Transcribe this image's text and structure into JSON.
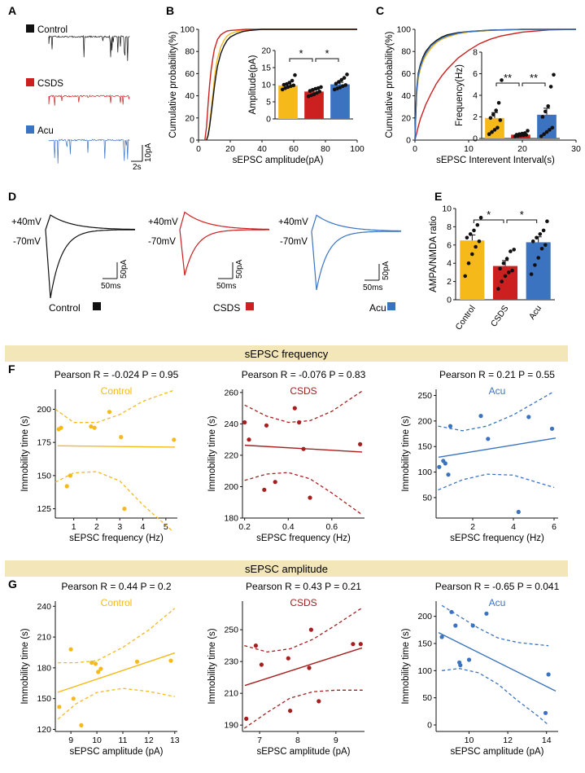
{
  "colors": {
    "control": "#f5b91a",
    "csds": "#cc1f1f",
    "acu": "#3b73c0",
    "band": "#f3e6b8",
    "dark": "#a51f1f",
    "black": "#111111"
  },
  "panels": {
    "A": "A",
    "B": "B",
    "C": "C",
    "D": "D",
    "E": "E",
    "F": "F",
    "G": "G"
  },
  "panel_a": {
    "labels": [
      "Control",
      "CSDS",
      "Acu"
    ],
    "scale_x": "2s",
    "scale_y": "10pA"
  },
  "panel_d": {
    "plus": "+40mV",
    "minus": "-70mV",
    "scale_x": "50ms",
    "scale_y": "50pA",
    "legend": [
      "Control",
      "CSDS",
      "Acu"
    ]
  },
  "band_frequency": "sEPSC frequency",
  "band_amplitude": "sEPSC amplitude",
  "chart_data": [
    {
      "id": "B",
      "type": "line",
      "xlabel": "sEPSC amplitude(pA)",
      "ylabel": "Cumulative probability(%)",
      "xlim": [
        0,
        100
      ],
      "ylim": [
        0,
        100
      ],
      "xticks": [
        "0",
        "20",
        "40",
        "60",
        "80",
        "100"
      ],
      "yticks": [
        "0",
        "20",
        "40",
        "60",
        "80",
        "100"
      ],
      "series": [
        {
          "name": "Control",
          "color": "control",
          "x": [
            5,
            6,
            7,
            8,
            9,
            10,
            11,
            12,
            14,
            16,
            18,
            20,
            24,
            28,
            32,
            40,
            50,
            100
          ],
          "y": [
            0,
            5,
            15,
            28,
            42,
            55,
            66,
            74,
            84,
            90,
            94,
            96,
            98,
            99,
            99.5,
            100,
            100,
            100
          ]
        },
        {
          "name": "CSDS",
          "color": "csds",
          "x": [
            4,
            5,
            6,
            7,
            8,
            9,
            10,
            12,
            14,
            16,
            18,
            20,
            25,
            30,
            40,
            100
          ],
          "y": [
            0,
            12,
            32,
            50,
            64,
            74,
            82,
            91,
            95,
            97,
            98.5,
            99,
            99.5,
            100,
            100,
            100
          ]
        },
        {
          "name": "Acu",
          "color": "black",
          "x": [
            5,
            6,
            7,
            8,
            9,
            10,
            11,
            12,
            14,
            16,
            18,
            20,
            24,
            28,
            32,
            40,
            50,
            100
          ],
          "y": [
            0,
            4,
            12,
            24,
            36,
            48,
            58,
            67,
            78,
            85,
            90,
            93,
            96,
            98,
            99,
            100,
            100,
            100
          ]
        }
      ],
      "inset": {
        "type": "bar",
        "ylabel": "Amplitude(pA)",
        "ylim": [
          0,
          20
        ],
        "yticks": [
          "0",
          "5",
          "10",
          "15",
          "20"
        ],
        "categories": [
          "Control",
          "CSDS",
          "Acu"
        ],
        "values": [
          9.8,
          8.0,
          10.1
        ],
        "errors": [
          0.5,
          0.4,
          0.6
        ],
        "points": [
          [
            8.6,
            9.0,
            9.3,
            9.6,
            9.8,
            10.0,
            10.2,
            10.6,
            11.2,
            12.8
          ],
          [
            6.6,
            6.9,
            7.2,
            7.6,
            8.0,
            8.2,
            8.5,
            8.8,
            9.0,
            9.3
          ],
          [
            8.6,
            8.9,
            9.2,
            9.6,
            9.9,
            10.3,
            10.8,
            11.4,
            12.0,
            13.0
          ]
        ],
        "significance": [
          "*",
          "*"
        ]
      }
    },
    {
      "id": "C",
      "type": "line",
      "xlabel": "sEPSC Interevent Interval(s)",
      "ylabel": "Cumulative probability(%)",
      "xlim": [
        0,
        30
      ],
      "ylim": [
        0,
        100
      ],
      "xticks": [
        "0",
        "10",
        "20",
        "30"
      ],
      "yticks": [
        "0",
        "20",
        "40",
        "60",
        "80",
        "100"
      ],
      "series": [
        {
          "name": "Control",
          "color": "control",
          "x": [
            0,
            0.3,
            0.6,
            1,
            1.5,
            2,
            3,
            4,
            5,
            6,
            8,
            10,
            14,
            20,
            30
          ],
          "y": [
            0,
            40,
            55,
            64,
            71,
            76,
            83,
            88,
            91,
            93,
            96,
            97.5,
            99,
            99.8,
            100
          ]
        },
        {
          "name": "CSDS",
          "color": "csds",
          "x": [
            0,
            0.5,
            1,
            2,
            3,
            4,
            5,
            6,
            8,
            10,
            12,
            14,
            16,
            20,
            25,
            30
          ],
          "y": [
            0,
            10,
            19,
            32,
            42,
            51,
            58,
            64,
            74,
            81,
            87,
            91,
            94,
            97.5,
            99.5,
            100
          ]
        },
        {
          "name": "Acu",
          "color": "black",
          "x": [
            0,
            0.3,
            0.6,
            1,
            1.5,
            2,
            3,
            4,
            5,
            6,
            8,
            10,
            14,
            20,
            30
          ],
          "y": [
            0,
            45,
            60,
            68,
            75,
            80,
            86,
            90,
            93,
            95,
            97,
            98,
            99.3,
            100,
            100
          ]
        },
        {
          "name": "Acu-blue",
          "color": "acu",
          "x": [
            0,
            0.3,
            0.6,
            1,
            1.5,
            2,
            3,
            4,
            5,
            6,
            8,
            10,
            14,
            20,
            30
          ],
          "y": [
            0,
            43,
            58,
            66,
            73,
            78,
            85,
            89,
            92,
            94,
            96.5,
            98,
            99.2,
            100,
            100
          ]
        }
      ],
      "inset": {
        "type": "bar",
        "ylabel": "Frequency(Hz)",
        "ylim": [
          0,
          8
        ],
        "yticks": [
          "0",
          "2",
          "4",
          "6",
          "8"
        ],
        "categories": [
          "Control",
          "CSDS",
          "Acu"
        ],
        "values": [
          1.9,
          0.35,
          2.2
        ],
        "errors": [
          0.5,
          0.06,
          0.6
        ],
        "points": [
          [
            0.4,
            0.6,
            0.8,
            1.0,
            1.7,
            1.9,
            2.2,
            2.6,
            3.3,
            5.4
          ],
          [
            0.2,
            0.25,
            0.28,
            0.3,
            0.33,
            0.35,
            0.4,
            0.45,
            0.5,
            0.72
          ],
          [
            0.2,
            0.4,
            0.6,
            0.8,
            1.0,
            2.0,
            2.5,
            3.0,
            4.8,
            5.9
          ]
        ],
        "significance": [
          "**",
          "**"
        ]
      }
    },
    {
      "id": "E",
      "type": "bar",
      "ylabel": "AMPA/NMDA ratio",
      "ylim": [
        0,
        10
      ],
      "yticks": [
        "0",
        "2",
        "4",
        "6",
        "8",
        "10"
      ],
      "categories": [
        "Control",
        "CSDS",
        "Acu"
      ],
      "values": [
        6.5,
        3.7,
        6.3
      ],
      "errors": [
        0.6,
        0.6,
        0.6
      ],
      "points": [
        [
          2.6,
          4.0,
          5.0,
          5.8,
          6.4,
          6.8,
          7.2,
          7.6,
          8.2,
          9.0
        ],
        [
          1.2,
          2.0,
          2.6,
          3.0,
          3.2,
          3.4,
          4.0,
          4.5,
          5.3,
          5.5
        ],
        [
          2.8,
          3.8,
          4.6,
          5.6,
          6.0,
          6.4,
          6.8,
          7.2,
          7.6,
          8.6
        ]
      ],
      "significance": [
        "*",
        "*"
      ]
    },
    {
      "id": "F1",
      "type": "scatter",
      "group": "Control",
      "color": "control",
      "title": "Pearson R = -0.024 P = 0.95",
      "xlabel": "sEPSC frequency (Hz)",
      "ylabel": "Immobility time (s)",
      "xlim": [
        0.2,
        5.5
      ],
      "ylim": [
        118,
        215
      ],
      "xticks": [
        1,
        2,
        3,
        4,
        5
      ],
      "yticks": [
        125,
        150,
        175,
        200
      ],
      "x": [
        0.35,
        0.45,
        0.7,
        0.85,
        1.75,
        1.9,
        2.55,
        3.05,
        3.2,
        5.35
      ],
      "y": [
        185,
        186,
        142,
        150,
        187,
        186,
        198,
        179,
        125,
        177
      ],
      "fit": [
        172.5,
        -0.2
      ],
      "ci": [
        [
          0.2,
          145
        ],
        [
          1.0,
          152
        ],
        [
          2.0,
          153
        ],
        [
          3.0,
          146
        ],
        [
          4.0,
          128
        ],
        [
          5.3,
          108
        ]
      ],
      "ci_upper": [
        [
          0.2,
          200
        ],
        [
          1.0,
          190
        ],
        [
          2.0,
          190
        ],
        [
          3.0,
          196
        ],
        [
          4.0,
          206
        ],
        [
          5.3,
          214
        ]
      ]
    },
    {
      "id": "F2",
      "type": "scatter",
      "group": "CSDS",
      "color": "dark",
      "title": "Pearson R = -0.076 P = 0.83",
      "xlabel": "sEPSC frequency (Hz)",
      "ylabel": "Immobility time (s)",
      "xlim": [
        0.19,
        0.75
      ],
      "ylim": [
        180,
        262
      ],
      "xticks": [
        0.2,
        0.4,
        0.6
      ],
      "yticks": [
        180,
        200,
        220,
        240,
        260
      ],
      "x": [
        0.2,
        0.22,
        0.29,
        0.3,
        0.34,
        0.43,
        0.45,
        0.47,
        0.5,
        0.73
      ],
      "y": [
        241,
        230,
        198,
        239,
        203,
        250,
        241,
        224,
        193,
        227
      ],
      "fit": [
        228.0,
        -8.0
      ],
      "ci": [
        [
          0.2,
          204
        ],
        [
          0.3,
          208
        ],
        [
          0.4,
          209
        ],
        [
          0.5,
          205
        ],
        [
          0.6,
          196
        ],
        [
          0.74,
          182
        ]
      ],
      "ci_upper": [
        [
          0.2,
          252
        ],
        [
          0.3,
          245
        ],
        [
          0.4,
          241
        ],
        [
          0.5,
          242
        ],
        [
          0.6,
          248
        ],
        [
          0.74,
          261
        ]
      ]
    },
    {
      "id": "F3",
      "type": "scatter",
      "group": "Acu",
      "color": "acu",
      "title": "Pearson R = 0.21 P = 0.55",
      "xlabel": "sEPSC frequency (Hz)",
      "ylabel": "Immobility time (s)",
      "xlim": [
        0.2,
        6.2
      ],
      "ylim": [
        10,
        262
      ],
      "xticks": [
        2,
        4,
        6
      ],
      "yticks": [
        50,
        100,
        150,
        200,
        250
      ],
      "x": [
        0.35,
        0.55,
        0.65,
        0.8,
        0.9,
        2.4,
        2.75,
        4.25,
        4.75,
        5.9
      ],
      "y": [
        110,
        122,
        117,
        95,
        190,
        210,
        165,
        22,
        208,
        185
      ],
      "fit": [
        127.0,
        6.5
      ],
      "ci": [
        [
          0.3,
          65
        ],
        [
          1.5,
          85
        ],
        [
          2.7,
          96
        ],
        [
          4.0,
          94
        ],
        [
          5.0,
          82
        ],
        [
          6.0,
          70
        ]
      ],
      "ci_upper": [
        [
          0.3,
          190
        ],
        [
          1.5,
          181
        ],
        [
          2.7,
          190
        ],
        [
          4.0,
          212
        ],
        [
          5.0,
          235
        ],
        [
          6.0,
          258
        ]
      ]
    },
    {
      "id": "G1",
      "type": "scatter",
      "group": "Control",
      "color": "control",
      "title": "Pearson R = 0.44 P = 0.2",
      "xlabel": "sEPSC amplitude (pA)",
      "ylabel": "Immobility time (s)",
      "xlim": [
        8.4,
        13.1
      ],
      "ylim": [
        118,
        245
      ],
      "xticks": [
        9,
        10,
        11,
        12,
        13
      ],
      "yticks": [
        120,
        150,
        180,
        210,
        240
      ],
      "x": [
        8.55,
        9.0,
        9.1,
        9.4,
        9.8,
        9.95,
        10.05,
        10.15,
        11.55,
        12.85
      ],
      "y": [
        142,
        198,
        150,
        124,
        185,
        184,
        176,
        179,
        186,
        187
      ],
      "fit": [
        84.0,
        8.5
      ],
      "ci": [
        [
          8.5,
          130
        ],
        [
          9.2,
          145
        ],
        [
          10.0,
          156
        ],
        [
          11.0,
          160
        ],
        [
          12.0,
          157
        ],
        [
          13.0,
          152
        ]
      ],
      "ci_upper": [
        [
          8.5,
          185
        ],
        [
          9.2,
          185
        ],
        [
          10.0,
          187
        ],
        [
          11.0,
          200
        ],
        [
          12.0,
          217
        ],
        [
          13.0,
          238
        ]
      ]
    },
    {
      "id": "G2",
      "type": "scatter",
      "group": "CSDS",
      "color": "dark",
      "title": "Pearson R = 0.43 P = 0.21",
      "xlabel": "sEPSC amplitude (pA)",
      "ylabel": "Immobility time (s)",
      "xlim": [
        6.55,
        9.75
      ],
      "ylim": [
        186,
        268
      ],
      "xticks": [
        7,
        8,
        9
      ],
      "yticks": [
        190,
        210,
        230,
        250
      ],
      "x": [
        6.65,
        6.9,
        7.05,
        7.75,
        7.8,
        8.3,
        8.35,
        8.55,
        9.45,
        9.65
      ],
      "y": [
        194,
        240,
        228,
        232,
        199,
        226,
        250,
        205,
        241,
        241
      ],
      "fit": [
        164.0,
        7.7
      ],
      "ci": [
        [
          6.6,
          188
        ],
        [
          7.2,
          198
        ],
        [
          7.8,
          207
        ],
        [
          8.4,
          211
        ],
        [
          9.0,
          212
        ],
        [
          9.7,
          212
        ]
      ],
      "ci_upper": [
        [
          6.6,
          240
        ],
        [
          7.2,
          236
        ],
        [
          7.8,
          238
        ],
        [
          8.4,
          244
        ],
        [
          9.0,
          253
        ],
        [
          9.7,
          264
        ]
      ]
    },
    {
      "id": "G3",
      "type": "scatter",
      "group": "Acu",
      "color": "acu",
      "title": "Pearson R = -0.65 P = 0.041",
      "xlabel": "sEPSC amplitude (pA)",
      "ylabel": "Immobility time (s)",
      "xlim": [
        8.3,
        14.6
      ],
      "ylim": [
        -12,
        228
      ],
      "xticks": [
        10,
        12,
        14
      ],
      "yticks": [
        0,
        50,
        100,
        150,
        200
      ],
      "x": [
        8.6,
        9.1,
        9.3,
        9.5,
        9.55,
        10.0,
        10.2,
        10.9,
        13.95,
        14.1
      ],
      "y": [
        162,
        208,
        183,
        115,
        110,
        120,
        183,
        205,
        22,
        93
      ],
      "fit": [
        320.0,
        -17.8
      ],
      "ci": [
        [
          8.6,
          100
        ],
        [
          9.5,
          104
        ],
        [
          10.5,
          96
        ],
        [
          11.5,
          75
        ],
        [
          12.5,
          45
        ],
        [
          13.5,
          18
        ],
        [
          14.1,
          0
        ]
      ],
      "ci_upper": [
        [
          8.6,
          220
        ],
        [
          9.5,
          200
        ],
        [
          10.5,
          178
        ],
        [
          11.5,
          160
        ],
        [
          12.5,
          152
        ],
        [
          13.5,
          148
        ],
        [
          14.1,
          146
        ]
      ]
    }
  ]
}
